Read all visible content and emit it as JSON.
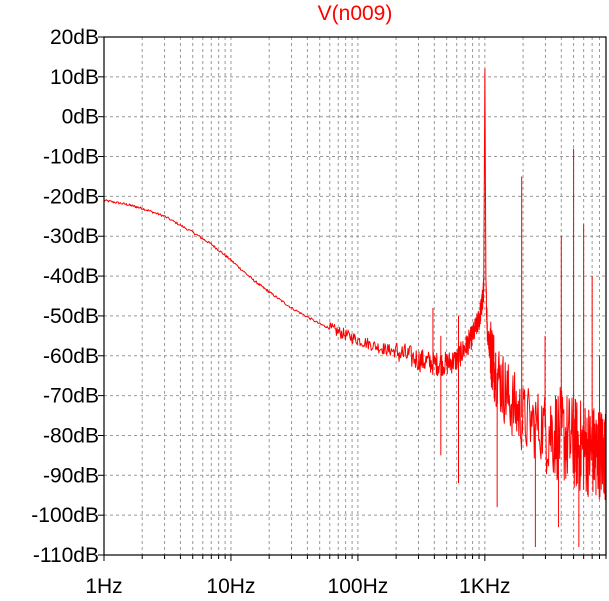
{
  "chart_data": {
    "type": "line",
    "title": "V(n009)",
    "xlabel": "",
    "ylabel": "",
    "x_scale": "log",
    "x_unit": "Hz",
    "xlim": [
      1,
      9000
    ],
    "ylim": [
      -110,
      20
    ],
    "grid": true,
    "colors": {
      "series": "#ff0000",
      "title": "#ff0000",
      "grid": "#999999",
      "frame": "#000000"
    },
    "x_tick_labels": [
      "1Hz",
      "10Hz",
      "100Hz",
      "1KHz"
    ],
    "x_tick_values": [
      1,
      10,
      100,
      1000
    ],
    "y_tick_labels": [
      "20dB",
      "10dB",
      "0dB",
      "-10dB",
      "-20dB",
      "-30dB",
      "-40dB",
      "-50dB",
      "-60dB",
      "-70dB",
      "-80dB",
      "-90dB",
      "-100dB",
      "-110dB"
    ],
    "y_tick_values": [
      20,
      10,
      0,
      -10,
      -20,
      -30,
      -40,
      -50,
      -60,
      -70,
      -80,
      -90,
      -100,
      -110
    ],
    "series": [
      {
        "x": [
          1,
          1.5,
          2,
          3,
          5,
          7,
          10,
          15,
          20,
          30,
          50,
          70,
          100,
          150,
          200,
          300,
          400,
          500,
          600,
          700,
          800,
          900,
          950,
          980,
          1000,
          1020,
          1050,
          1100,
          1200,
          1500,
          2000,
          3000,
          4000,
          5000,
          6000,
          7000,
          8000,
          9000
        ],
        "y": [
          -21,
          -22,
          -23,
          -25,
          -29,
          -32,
          -36,
          -41,
          -44,
          -48,
          -52,
          -54,
          -56,
          -58,
          -59,
          -61,
          -62,
          -62,
          -61,
          -58,
          -55,
          -51,
          -47,
          -43,
          12,
          -43,
          -55,
          -58,
          -63,
          -70,
          -76,
          -78,
          -80,
          -82,
          -83,
          -84,
          -84,
          -85
        ]
      }
    ],
    "spikes": [
      {
        "x": 390,
        "y": -48
      },
      {
        "x": 450,
        "y": -55
      },
      {
        "x": 620,
        "y": -50
      },
      {
        "x": 1000,
        "y": 12
      },
      {
        "x": 1950,
        "y": -15
      },
      {
        "x": 2980,
        "y": -55
      },
      {
        "x": 4000,
        "y": -30
      },
      {
        "x": 5000,
        "y": -8
      },
      {
        "x": 6000,
        "y": -27
      },
      {
        "x": 7000,
        "y": -40
      },
      {
        "x": 8000,
        "y": -60
      }
    ],
    "dips": [
      {
        "x": 450,
        "y": -85
      },
      {
        "x": 620,
        "y": -92
      },
      {
        "x": 1250,
        "y": -98
      },
      {
        "x": 2500,
        "y": -108
      },
      {
        "x": 3800,
        "y": -103
      },
      {
        "x": 5500,
        "y": -108
      },
      {
        "x": 7500,
        "y": -95
      }
    ]
  }
}
